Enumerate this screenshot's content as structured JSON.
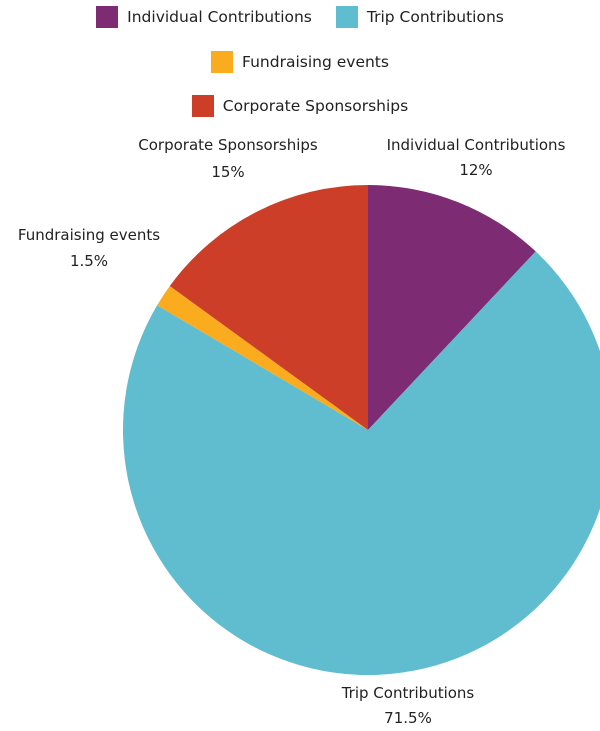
{
  "chart_data": {
    "type": "pie",
    "title": "",
    "slices": [
      {
        "label": "Individual Contributions",
        "value": 12,
        "display": "12%",
        "color": "#7d2c73"
      },
      {
        "label": "Trip Contributions",
        "value": 71.5,
        "display": "71.5%",
        "color": "#60bccf"
      },
      {
        "label": "Fundraising events",
        "value": 1.5,
        "display": "1.5%",
        "color": "#faac1e"
      },
      {
        "label": "Corporate Sponsorships",
        "value": 15,
        "display": "15%",
        "color": "#cd3e28"
      }
    ],
    "legend": {
      "placement": "top",
      "rows": [
        [
          0,
          1
        ],
        [
          2
        ],
        [
          3
        ]
      ]
    }
  }
}
